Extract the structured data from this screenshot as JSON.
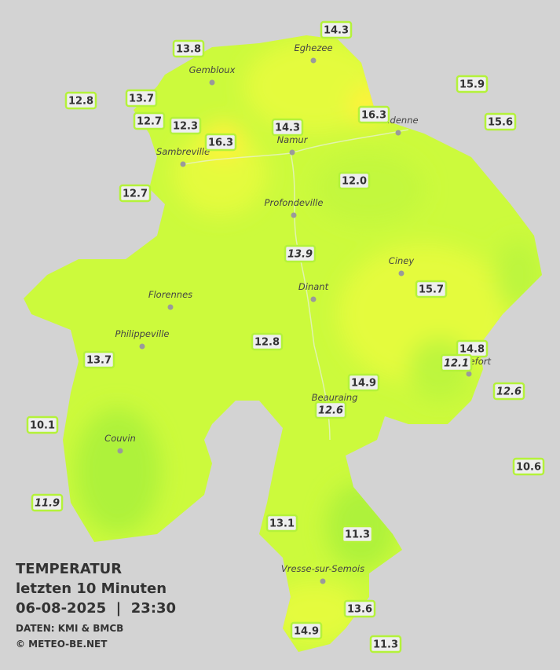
{
  "title": "TEMPERATUR",
  "subtitle": "letzten 10 Minuten",
  "datetime": "06-08-2025  |  23:30",
  "source": "DATEN: KMI & BMCB",
  "copyright": "© METEO-BE.NET",
  "towns": [
    "Eghezee",
    "Gembloux",
    "Andenne",
    "Namur",
    "Sambreville",
    "Profondeville",
    "Ciney",
    "Dinant",
    "Florennes",
    "Philippeville",
    "Rochefort",
    "Beauraing",
    "Couvin",
    "Vresse-sur-Semois"
  ],
  "stations": [
    {
      "value": 14.3
    },
    {
      "value": 13.8
    },
    {
      "value": 12.8
    },
    {
      "value": 13.7
    },
    {
      "value": 15.9
    },
    {
      "value": 12.7
    },
    {
      "value": 12.3
    },
    {
      "value": 16.3
    },
    {
      "value": 14.3
    },
    {
      "value": 16.3
    },
    {
      "value": 15.6
    },
    {
      "value": 12.7
    },
    {
      "value": 12.0,
      "label": "12.0"
    },
    {
      "value": 13.9,
      "italic": true
    },
    {
      "value": 15.7
    },
    {
      "value": 12.8
    },
    {
      "value": 13.7
    },
    {
      "value": 14.8
    },
    {
      "value": 12.1,
      "italic": true
    },
    {
      "value": 14.9
    },
    {
      "value": 12.6,
      "italic": true
    },
    {
      "value": 12.6,
      "italic": true
    },
    {
      "value": 10.1
    },
    {
      "value": 10.6
    },
    {
      "value": 11.9,
      "italic": true
    },
    {
      "value": 13.1
    },
    {
      "value": 11.3
    },
    {
      "value": 13.6
    },
    {
      "value": 14.9
    },
    {
      "value": 11.3
    }
  ]
}
